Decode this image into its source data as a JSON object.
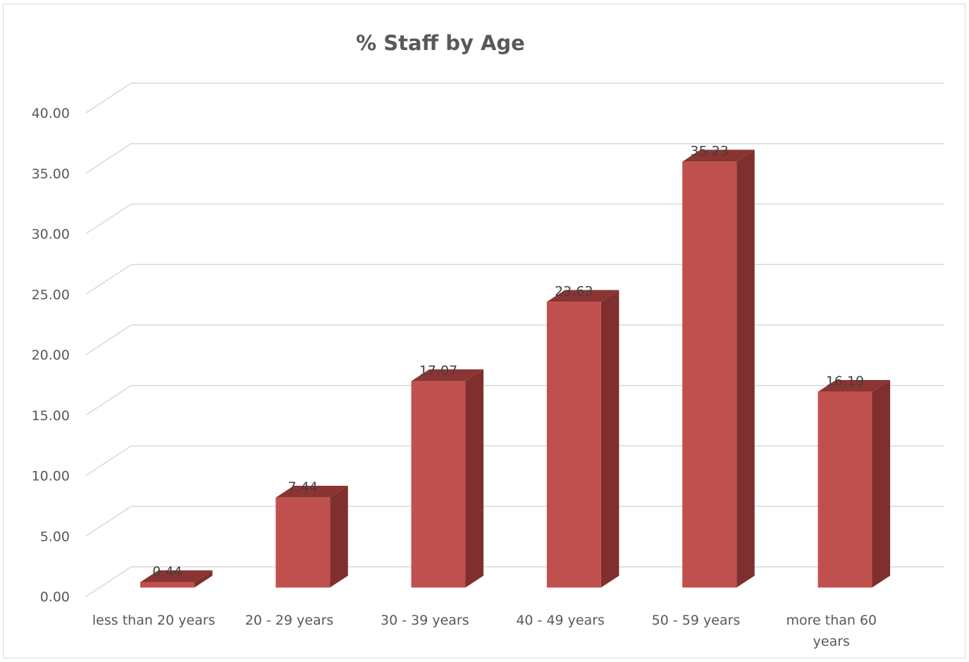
{
  "chart_data": {
    "type": "bar",
    "title": "% Staff by Age",
    "xlabel": "",
    "ylabel": "",
    "categories": [
      "less than 20 years",
      "20 - 29 years",
      "30 - 39 years",
      "40 - 49 years",
      "50 - 59 years",
      "more than 60 years"
    ],
    "category_lines": [
      [
        "less than 20 years"
      ],
      [
        "20 - 29 years"
      ],
      [
        "30 - 39 years"
      ],
      [
        "40 - 49 years"
      ],
      [
        "50 - 59 years"
      ],
      [
        "more than 60",
        "years"
      ]
    ],
    "values": [
      0.44,
      7.44,
      17.07,
      23.63,
      35.23,
      16.19
    ],
    "value_labels": [
      "0.44",
      "7.44",
      "17.07",
      "23.63",
      "35.23",
      "16.19"
    ],
    "ylim": [
      0,
      40
    ],
    "yticks": [
      0,
      5,
      10,
      15,
      20,
      25,
      30,
      35,
      40
    ],
    "ytick_labels": [
      "0.00",
      "5.00",
      "10.00",
      "15.00",
      "20.00",
      "25.00",
      "30.00",
      "35.00",
      "40.00"
    ],
    "grid": true,
    "legend": "none",
    "style": "3d-column",
    "colors": {
      "bar_front": "#c0504d",
      "bar_side": "#7f302e",
      "bar_top": "#8b3533",
      "grid": "#d9d9d9",
      "text": "#595959"
    }
  }
}
